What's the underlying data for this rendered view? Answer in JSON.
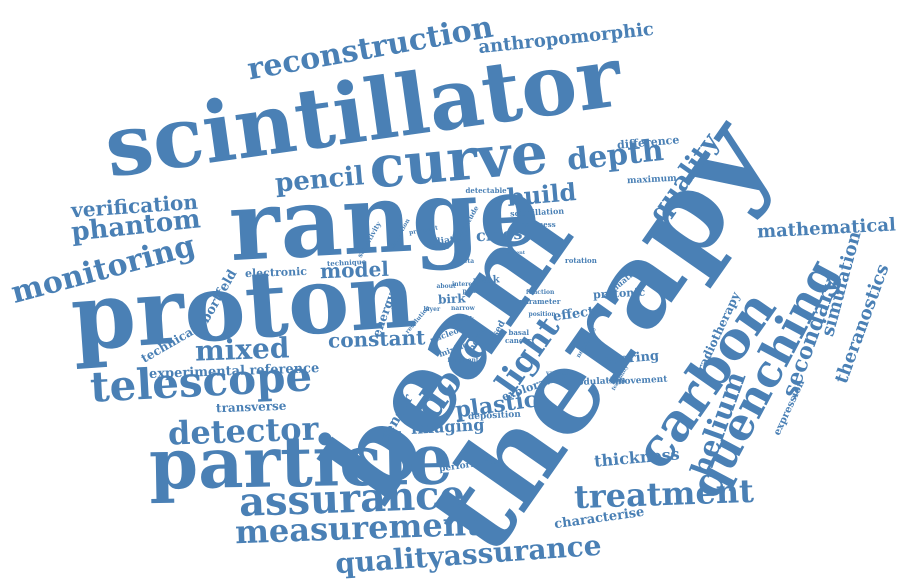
{
  "accent_color": "#4a80b5",
  "words": [
    {
      "text": "scintillator"
    },
    {
      "text": "range"
    },
    {
      "text": "proton"
    },
    {
      "text": "beam"
    },
    {
      "text": "therapy"
    },
    {
      "text": "particle"
    },
    {
      "text": "curve"
    },
    {
      "text": "carbon"
    },
    {
      "text": "quenching"
    },
    {
      "text": "telescope"
    },
    {
      "text": "assurance"
    },
    {
      "text": "measurement"
    },
    {
      "text": "reconstruction"
    },
    {
      "text": "qualityassurance"
    },
    {
      "text": "treatment"
    },
    {
      "text": "detector"
    },
    {
      "text": "monitoring"
    },
    {
      "text": "depth"
    },
    {
      "text": "pencil"
    },
    {
      "text": "phantom"
    },
    {
      "text": "verification"
    },
    {
      "text": "mixed"
    },
    {
      "text": "dose"
    },
    {
      "text": "light"
    },
    {
      "text": "helium"
    },
    {
      "text": "build"
    },
    {
      "text": "quality"
    },
    {
      "text": "anthropomorphic"
    },
    {
      "text": "mathematical"
    },
    {
      "text": "simulation"
    },
    {
      "text": "secondary"
    },
    {
      "text": "theranostics"
    },
    {
      "text": "model"
    },
    {
      "text": "constant"
    },
    {
      "text": "plastic"
    },
    {
      "text": "imaging"
    },
    {
      "text": "thickness"
    },
    {
      "text": "characterise"
    },
    {
      "text": "experimental reference"
    },
    {
      "text": "technical"
    },
    {
      "text": "transverse"
    },
    {
      "text": "bortfeld"
    },
    {
      "text": "electronic"
    },
    {
      "text": "cmos"
    },
    {
      "text": "sensor"
    },
    {
      "text": "radiotherapy"
    },
    {
      "text": "expression"
    },
    {
      "text": "exploration"
    },
    {
      "text": "effect"
    },
    {
      "text": "protonic"
    },
    {
      "text": "sparing"
    },
    {
      "text": "difference"
    },
    {
      "text": "maximum"
    },
    {
      "text": "scintillation"
    },
    {
      "text": "radiation"
    },
    {
      "text": "birk"
    },
    {
      "text": "energy"
    },
    {
      "text": "deposition"
    },
    {
      "text": "modulation"
    },
    {
      "text": "performance"
    },
    {
      "text": "movement"
    },
    {
      "text": "peak"
    },
    {
      "text": "rotation"
    },
    {
      "text": "evaluation"
    },
    {
      "text": "detectable"
    },
    {
      "text": "magnitude"
    },
    {
      "text": "sensitivity"
    },
    {
      "text": "prospect"
    },
    {
      "text": "hardness"
    },
    {
      "text": "technique"
    },
    {
      "text": "parameter"
    },
    {
      "text": "function"
    },
    {
      "text": "position"
    },
    {
      "text": "mixing"
    },
    {
      "text": "novel"
    },
    {
      "text": "based"
    },
    {
      "text": "fragment"
    },
    {
      "text": "variation"
    },
    {
      "text": "negligible"
    },
    {
      "text": "basal"
    },
    {
      "text": "cancer"
    },
    {
      "text": "feasibility"
    },
    {
      "text": "nucleon"
    },
    {
      "text": "layer"
    },
    {
      "text": "stack"
    },
    {
      "text": "pmma"
    },
    {
      "text": "interest"
    },
    {
      "text": "patient"
    },
    {
      "text": "change"
    },
    {
      "text": "limitation"
    },
    {
      "text": "beta"
    },
    {
      "text": "about"
    },
    {
      "text": "resolution"
    },
    {
      "text": "narrow"
    }
  ]
}
